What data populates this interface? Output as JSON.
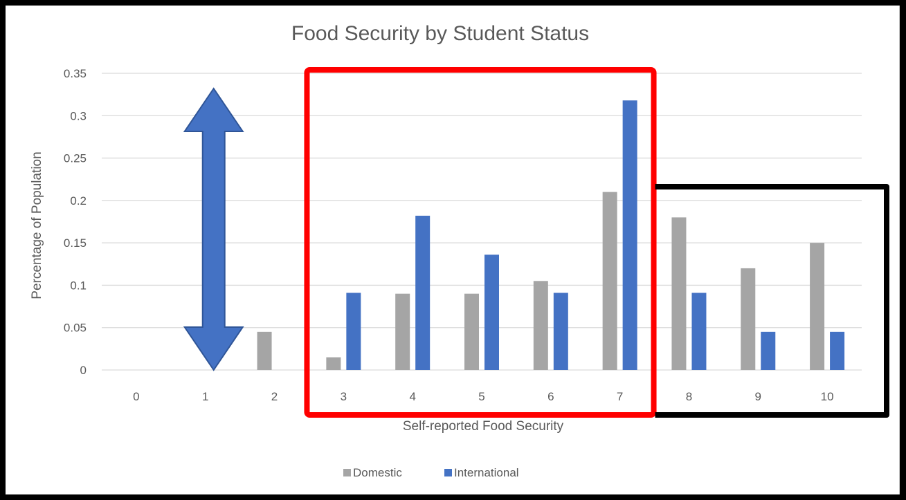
{
  "chart_data": {
    "type": "bar",
    "title": "Food Security by Student Status",
    "xlabel": "Self-reported Food Security",
    "ylabel": "Percentage of Population",
    "categories": [
      "0",
      "1",
      "2",
      "3",
      "4",
      "5",
      "6",
      "7",
      "8",
      "9",
      "10"
    ],
    "series": [
      {
        "name": "Domestic",
        "color": "#a5a5a5",
        "values": [
          0,
          0,
          0.045,
          0.015,
          0.09,
          0.09,
          0.105,
          0.21,
          0.18,
          0.12,
          0.15
        ]
      },
      {
        "name": "International",
        "color": "#4472c4",
        "values": [
          0,
          0,
          0,
          0.091,
          0.182,
          0.136,
          0.091,
          0.318,
          0.091,
          0.045,
          0.045
        ]
      }
    ],
    "yticks": [
      "0",
      "0.05",
      "0.1",
      "0.15",
      "0.2",
      "0.25",
      "0.3",
      "0.35"
    ],
    "ylim": [
      0,
      0.35
    ],
    "grid": true,
    "legend_position": "bottom",
    "annotations": {
      "arrow": {
        "type": "double-headed arrow",
        "category": "1",
        "color": "#4472c4"
      },
      "red_box": {
        "categories": [
          "3",
          "7"
        ],
        "color": "#ff0000"
      },
      "black_box": {
        "categories": [
          "8",
          "10"
        ],
        "color": "#000000"
      }
    }
  }
}
